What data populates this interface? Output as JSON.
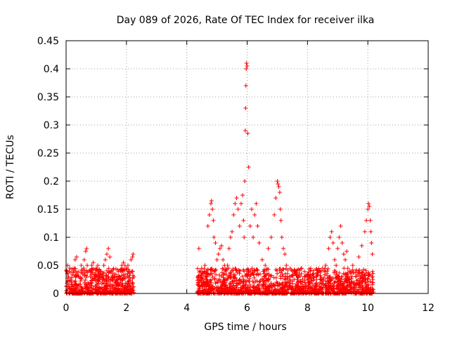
{
  "chart_data": {
    "type": "scatter",
    "title": "Day 089 of 2026, Rate Of TEC Index for receiver ilka",
    "xlabel": "GPS time / hours",
    "ylabel": "ROTI / TECUs",
    "xlim": [
      0,
      12
    ],
    "ylim": [
      0,
      0.45
    ],
    "xticks": [
      0,
      2,
      4,
      6,
      8,
      10,
      12
    ],
    "yticks": [
      0,
      0.05,
      0.1,
      0.15,
      0.2,
      0.25,
      0.3,
      0.35,
      0.4,
      0.45
    ],
    "xtick_labels": [
      "0",
      "2",
      "4",
      "6",
      "8",
      "10",
      "12"
    ],
    "ytick_labels": [
      "0",
      "0.05",
      "0.1",
      "0.15",
      "0.2",
      "0.25",
      "0.3",
      "0.35",
      "0.4",
      "0.45"
    ],
    "grid": true,
    "marker": "+",
    "color": "#ff0000",
    "series": [
      {
        "name": "ROTI",
        "x": [
          0.02,
          0.05,
          0.08,
          0.12,
          0.18,
          0.25,
          0.3,
          0.35,
          0.42,
          0.5,
          0.55,
          0.6,
          0.65,
          0.68,
          0.7,
          0.75,
          0.8,
          0.85,
          0.9,
          0.95,
          1.0,
          1.05,
          1.1,
          1.15,
          1.2,
          1.25,
          1.3,
          1.35,
          1.4,
          1.45,
          1.5,
          1.55,
          1.6,
          1.7,
          1.8,
          1.85,
          1.9,
          1.95,
          2.0,
          2.05,
          2.1,
          2.15,
          2.2,
          2.22,
          4.4,
          4.45,
          4.5,
          4.55,
          4.6,
          4.65,
          4.7,
          4.75,
          4.8,
          4.82,
          4.85,
          4.88,
          4.9,
          4.95,
          5.0,
          5.05,
          5.1,
          5.15,
          5.2,
          5.25,
          5.3,
          5.35,
          5.4,
          5.45,
          5.5,
          5.55,
          5.6,
          5.65,
          5.7,
          5.75,
          5.8,
          5.85,
          5.88,
          5.9,
          5.92,
          5.94,
          5.95,
          5.96,
          5.97,
          5.98,
          6.0,
          6.02,
          6.05,
          6.1,
          6.15,
          6.2,
          6.25,
          6.3,
          6.35,
          6.4,
          6.5,
          6.6,
          6.7,
          6.8,
          6.9,
          6.95,
          7.0,
          7.02,
          7.05,
          7.08,
          7.1,
          7.12,
          7.15,
          7.2,
          7.25,
          7.3,
          7.4,
          7.5,
          7.6,
          7.7,
          7.8,
          7.9,
          8.0,
          8.1,
          8.2,
          8.3,
          8.4,
          8.5,
          8.6,
          8.7,
          8.75,
          8.8,
          8.85,
          8.9,
          8.95,
          9.0,
          9.05,
          9.1,
          9.15,
          9.2,
          9.25,
          9.3,
          9.4,
          9.5,
          9.6,
          9.7,
          9.8,
          9.9,
          9.95,
          10.0,
          10.02,
          10.05,
          10.08,
          10.1,
          10.12,
          10.15
        ],
        "y": [
          0.04,
          0.05,
          0.03,
          0.045,
          0.02,
          0.04,
          0.06,
          0.065,
          0.03,
          0.05,
          0.035,
          0.06,
          0.075,
          0.08,
          0.05,
          0.04,
          0.03,
          0.05,
          0.055,
          0.03,
          0.045,
          0.05,
          0.035,
          0.04,
          0.03,
          0.05,
          0.06,
          0.07,
          0.08,
          0.065,
          0.04,
          0.035,
          0.03,
          0.025,
          0.04,
          0.05,
          0.055,
          0.05,
          0.045,
          0.05,
          0.04,
          0.06,
          0.065,
          0.07,
          0.08,
          0.04,
          0.03,
          0.035,
          0.05,
          0.04,
          0.12,
          0.14,
          0.16,
          0.165,
          0.15,
          0.13,
          0.1,
          0.09,
          0.06,
          0.07,
          0.08,
          0.085,
          0.06,
          0.05,
          0.04,
          0.05,
          0.08,
          0.1,
          0.11,
          0.14,
          0.16,
          0.17,
          0.15,
          0.12,
          0.16,
          0.175,
          0.13,
          0.1,
          0.2,
          0.29,
          0.33,
          0.37,
          0.4,
          0.41,
          0.405,
          0.285,
          0.225,
          0.12,
          0.15,
          0.1,
          0.14,
          0.16,
          0.12,
          0.09,
          0.06,
          0.05,
          0.08,
          0.1,
          0.14,
          0.17,
          0.2,
          0.195,
          0.19,
          0.18,
          0.15,
          0.13,
          0.1,
          0.08,
          0.07,
          0.05,
          0.03,
          0.04,
          0.035,
          0.03,
          0.045,
          0.03,
          0.025,
          0.04,
          0.035,
          0.03,
          0.04,
          0.045,
          0.05,
          0.08,
          0.1,
          0.11,
          0.09,
          0.06,
          0.05,
          0.08,
          0.1,
          0.12,
          0.09,
          0.07,
          0.06,
          0.075,
          0.04,
          0.05,
          0.03,
          0.065,
          0.085,
          0.11,
          0.13,
          0.15,
          0.16,
          0.155,
          0.13,
          0.11,
          0.09,
          0.07
        ]
      }
    ]
  }
}
